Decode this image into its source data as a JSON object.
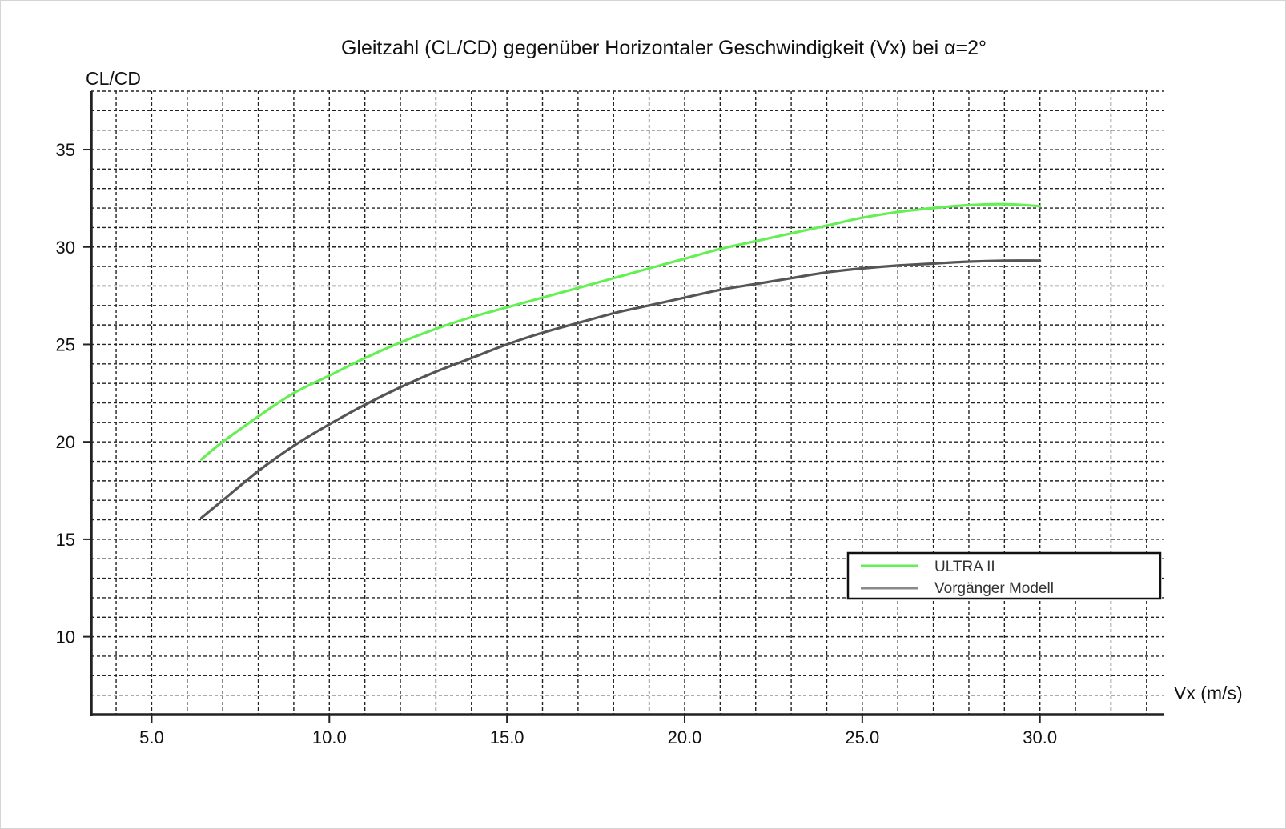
{
  "chart_data": {
    "type": "line",
    "title": "Gleitzahl (CL/CD) gegenüber Horizontaler Geschwindigkeit (Vx) bei α=2°",
    "xlabel": "Vx (m/s)",
    "ylabel": "CL/CD",
    "xlim": [
      3.3,
      33.5
    ],
    "ylim": [
      6.0,
      38.0
    ],
    "xticks": [
      5.0,
      10.0,
      15.0,
      20.0,
      25.0,
      30.0
    ],
    "xtick_labels": [
      "5.0",
      "10.0",
      "15.0",
      "20.0",
      "25.0",
      "30.0"
    ],
    "yticks": [
      10,
      15,
      20,
      25,
      30,
      35
    ],
    "ytick_labels": [
      "10",
      "15",
      "20",
      "25",
      "30",
      "35"
    ],
    "grid": true,
    "grid_style": "dashed",
    "legend_position": "bottom-right",
    "series": [
      {
        "name": "ULTRA II",
        "color": "#66ee55",
        "x": [
          6.4,
          7.0,
          8.0,
          9.0,
          10.0,
          11.0,
          12.0,
          13.0,
          14.0,
          15.0,
          16.0,
          17.0,
          18.0,
          19.0,
          20.0,
          21.0,
          22.0,
          23.0,
          24.0,
          25.0,
          26.0,
          27.0,
          28.0,
          29.0,
          30.0
        ],
        "y": [
          19.1,
          20.0,
          21.3,
          22.5,
          23.4,
          24.3,
          25.1,
          25.8,
          26.4,
          26.9,
          27.4,
          27.9,
          28.4,
          28.9,
          29.4,
          29.9,
          30.3,
          30.7,
          31.1,
          31.5,
          31.8,
          32.0,
          32.15,
          32.2,
          32.1
        ]
      },
      {
        "name": "Vorgänger Modell",
        "color": "#555555",
        "x": [
          6.4,
          7.0,
          8.0,
          9.0,
          10.0,
          11.0,
          12.0,
          13.0,
          14.0,
          15.0,
          16.0,
          17.0,
          18.0,
          19.0,
          20.0,
          21.0,
          22.0,
          23.0,
          24.0,
          25.0,
          26.0,
          27.0,
          28.0,
          29.0,
          30.0
        ],
        "y": [
          16.1,
          17.0,
          18.5,
          19.8,
          20.9,
          21.9,
          22.8,
          23.6,
          24.3,
          25.0,
          25.6,
          26.1,
          26.6,
          27.0,
          27.4,
          27.8,
          28.1,
          28.4,
          28.7,
          28.9,
          29.05,
          29.15,
          29.25,
          29.3,
          29.3
        ]
      }
    ]
  }
}
